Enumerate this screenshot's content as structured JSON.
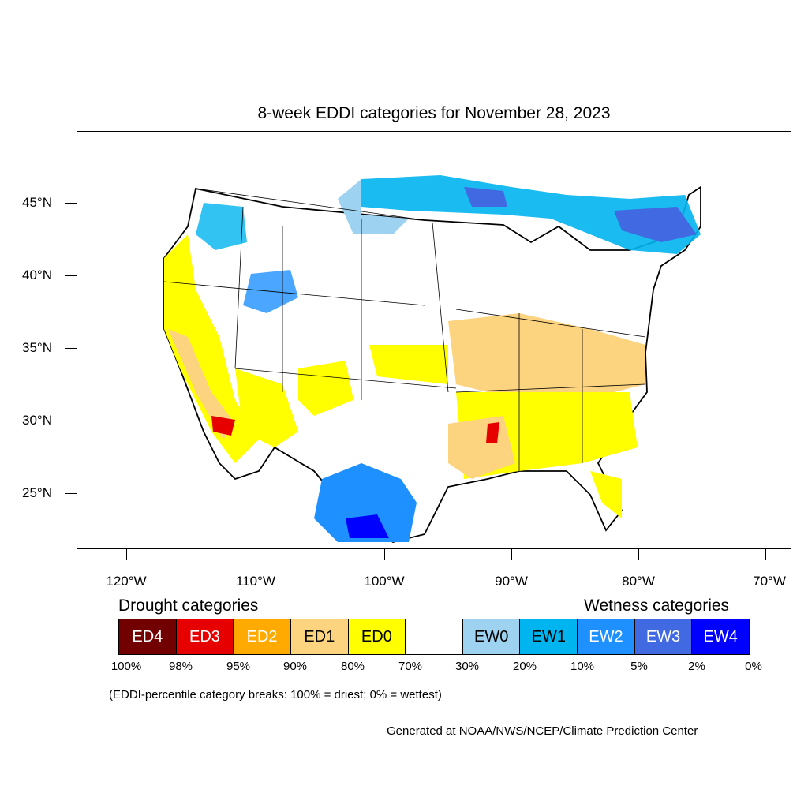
{
  "title": "8-week EDDI categories for November 28, 2023",
  "latitude_labels": [
    "45°N",
    "40°N",
    "35°N",
    "30°N",
    "25°N"
  ],
  "longitude_labels": [
    "120°W",
    "110°W",
    "100°W",
    "90°W",
    "80°W",
    "70°W"
  ],
  "legend": {
    "drought_heading": "Drought categories",
    "wetness_heading": "Wetness categories",
    "categories": [
      {
        "label": "ED4",
        "color": "#730000",
        "text_color": "#ffffff"
      },
      {
        "label": "ED3",
        "color": "#e60000",
        "text_color": "#ffffff"
      },
      {
        "label": "ED2",
        "color": "#ffaa00",
        "text_color": "#ffffff"
      },
      {
        "label": "ED1",
        "color": "#fcd37f",
        "text_color": "#000000"
      },
      {
        "label": "ED0",
        "color": "#ffff00",
        "text_color": "#000000"
      },
      {
        "label": "",
        "color": "#ffffff",
        "text_color": "#000000"
      },
      {
        "label": "EW0",
        "color": "#9dd2f0",
        "text_color": "#000000"
      },
      {
        "label": "EW1",
        "color": "#00b4f0",
        "text_color": "#000000"
      },
      {
        "label": "EW2",
        "color": "#1e90ff",
        "text_color": "#ffffff"
      },
      {
        "label": "EW3",
        "color": "#4169e1",
        "text_color": "#ffffff"
      },
      {
        "label": "EW4",
        "color": "#0000ff",
        "text_color": "#ffffff"
      }
    ],
    "percentiles": [
      "100%",
      "98%",
      "95%",
      "90%",
      "80%",
      "70%",
      "30%",
      "20%",
      "10%",
      "5%",
      "2%",
      "0%"
    ]
  },
  "note": "(EDDI-percentile category breaks: 100% = driest; 0% = wettest)",
  "credit": "Generated at NOAA/NWS/NCEP/Climate Prediction Center"
}
